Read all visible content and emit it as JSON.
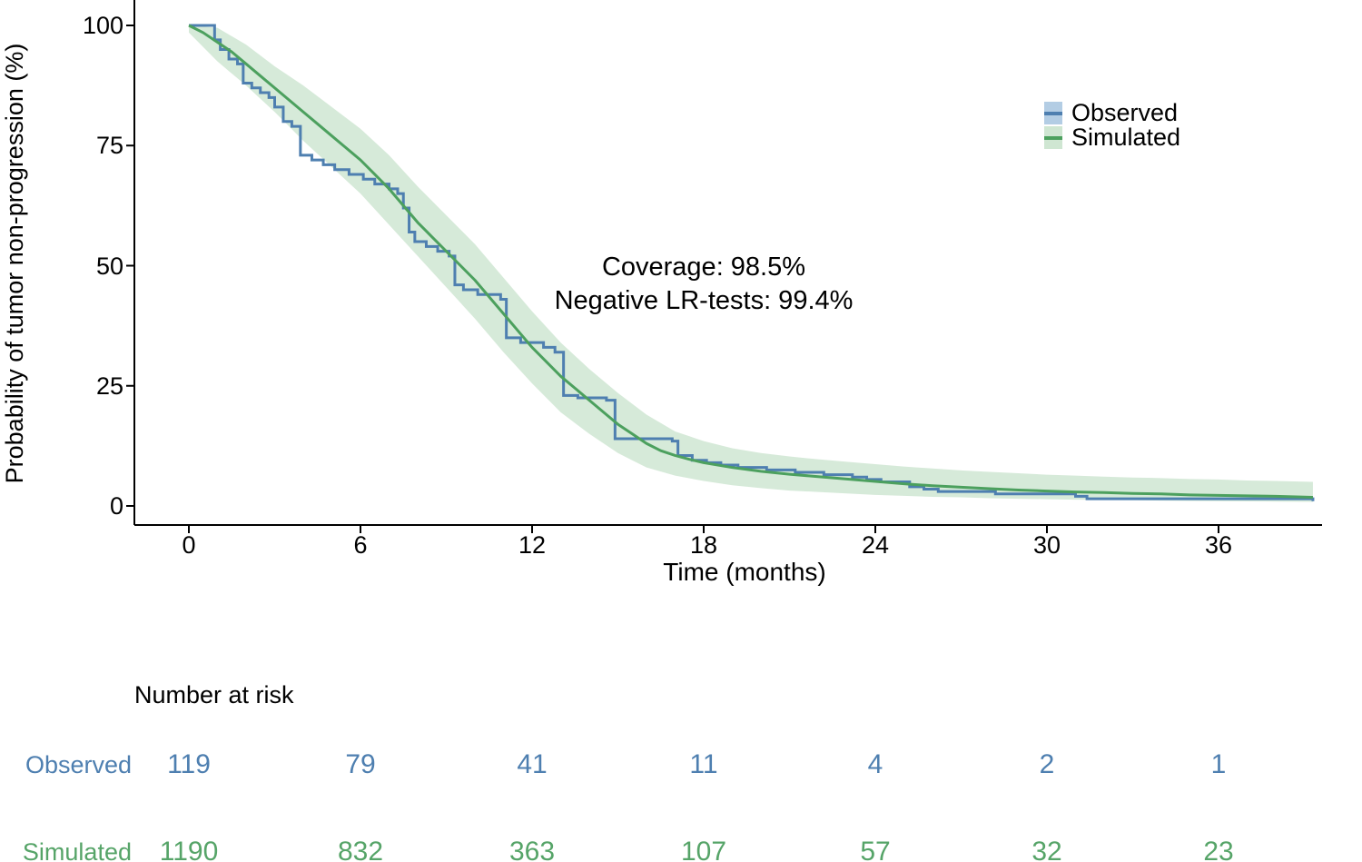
{
  "figure": {
    "ylabel": "Probability of tumor non-progression (%)",
    "xlabel": "Time (months)",
    "annotation_line1": "Coverage: 98.5%",
    "annotation_line2": "Negative LR-tests: 99.4%"
  },
  "legend": {
    "items": [
      {
        "label": "Observed",
        "line_color": "#4e7fb0",
        "fill_color": "#b3cde4"
      },
      {
        "label": "Simulated",
        "line_color": "#4ca05e",
        "fill_color": "#cfe6d2"
      }
    ]
  },
  "chart_data": {
    "type": "line",
    "title": "",
    "xlabel": "Time (months)",
    "ylabel": "Probability of tumor non-progression (%)",
    "xlim": [
      -1.9,
      39.6
    ],
    "ylim": [
      -4,
      105
    ],
    "x_ticks": [
      0,
      6,
      12,
      18,
      24,
      30,
      36
    ],
    "y_ticks": [
      0,
      25,
      50,
      75,
      100
    ],
    "grid": false,
    "legend_position": "upper right inside",
    "annotations": [
      "Coverage: 98.5%",
      "Negative LR-tests: 99.4%"
    ],
    "series": [
      {
        "name": "Observed",
        "style": "step",
        "color": "#4e7fb0",
        "points": [
          [
            0,
            100
          ],
          [
            0.7,
            100
          ],
          [
            0.9,
            97
          ],
          [
            1.1,
            95
          ],
          [
            1.4,
            93
          ],
          [
            1.7,
            92
          ],
          [
            1.9,
            88
          ],
          [
            2.2,
            87
          ],
          [
            2.5,
            86
          ],
          [
            2.8,
            85
          ],
          [
            3.0,
            83
          ],
          [
            3.3,
            80
          ],
          [
            3.6,
            79
          ],
          [
            3.9,
            73
          ],
          [
            4.3,
            72
          ],
          [
            4.7,
            71
          ],
          [
            5.1,
            70
          ],
          [
            5.6,
            69
          ],
          [
            6.1,
            68
          ],
          [
            6.5,
            67
          ],
          [
            7.0,
            66
          ],
          [
            7.3,
            65
          ],
          [
            7.5,
            62
          ],
          [
            7.7,
            57
          ],
          [
            7.9,
            55
          ],
          [
            8.3,
            54
          ],
          [
            8.7,
            53
          ],
          [
            9.1,
            52
          ],
          [
            9.3,
            46
          ],
          [
            9.6,
            45
          ],
          [
            10.1,
            44
          ],
          [
            10.9,
            43
          ],
          [
            11.1,
            35
          ],
          [
            11.6,
            34
          ],
          [
            12.4,
            33
          ],
          [
            12.8,
            32
          ],
          [
            13.1,
            23
          ],
          [
            13.6,
            22.5
          ],
          [
            14.6,
            22
          ],
          [
            14.9,
            14
          ],
          [
            16.9,
            13.5
          ],
          [
            17.1,
            10.5
          ],
          [
            17.6,
            9.5
          ],
          [
            18.1,
            9
          ],
          [
            18.6,
            8.5
          ],
          [
            19.2,
            8
          ],
          [
            20.2,
            7.5
          ],
          [
            21.2,
            7
          ],
          [
            22.2,
            6.5
          ],
          [
            23.2,
            6
          ],
          [
            23.7,
            5.5
          ],
          [
            24.2,
            5
          ],
          [
            25.2,
            4
          ],
          [
            25.7,
            3.5
          ],
          [
            26.2,
            3
          ],
          [
            28.2,
            2.5
          ],
          [
            31.0,
            2
          ],
          [
            31.4,
            1.5
          ],
          [
            39.3,
            1
          ]
        ]
      },
      {
        "name": "Simulated",
        "style": "line",
        "color": "#4ca05e",
        "points": [
          [
            0,
            100
          ],
          [
            0.5,
            98.5
          ],
          [
            1,
            96.5
          ],
          [
            1.5,
            94.5
          ],
          [
            2,
            92
          ],
          [
            2.5,
            89.5
          ],
          [
            3,
            87
          ],
          [
            3.5,
            84.5
          ],
          [
            4,
            82
          ],
          [
            4.5,
            79.5
          ],
          [
            5,
            77
          ],
          [
            5.5,
            74.5
          ],
          [
            6,
            72
          ],
          [
            6.5,
            69
          ],
          [
            7,
            66
          ],
          [
            7.5,
            62.5
          ],
          [
            8,
            59
          ],
          [
            8.5,
            56
          ],
          [
            9,
            53
          ],
          [
            9.5,
            50
          ],
          [
            10,
            47
          ],
          [
            10.5,
            43.5
          ],
          [
            11,
            40
          ],
          [
            11.5,
            36.5
          ],
          [
            12,
            33
          ],
          [
            12.5,
            30
          ],
          [
            13,
            27
          ],
          [
            13.5,
            24.5
          ],
          [
            14,
            22
          ],
          [
            14.5,
            19.5
          ],
          [
            15,
            17
          ],
          [
            15.5,
            15
          ],
          [
            16,
            13
          ],
          [
            16.5,
            11.5
          ],
          [
            17,
            10.5
          ],
          [
            17.5,
            9.7
          ],
          [
            18,
            9
          ],
          [
            19,
            8
          ],
          [
            20,
            7.2
          ],
          [
            21,
            6.6
          ],
          [
            22,
            6.1
          ],
          [
            23,
            5.6
          ],
          [
            24,
            5.1
          ],
          [
            25,
            4.6
          ],
          [
            26,
            4.2
          ],
          [
            27,
            3.9
          ],
          [
            28,
            3.6
          ],
          [
            29,
            3.3
          ],
          [
            30,
            3.1
          ],
          [
            31,
            2.9
          ],
          [
            32,
            2.8
          ],
          [
            33,
            2.6
          ],
          [
            34,
            2.5
          ],
          [
            35,
            2.3
          ],
          [
            36,
            2.2
          ],
          [
            37,
            2.1
          ],
          [
            38,
            2.0
          ],
          [
            39.3,
            1.8
          ]
        ],
        "band": {
          "fill": "#cfe6d2",
          "upper": [
            [
              0,
              100
            ],
            [
              1,
              99.5
            ],
            [
              2,
              96
            ],
            [
              3,
              91.5
            ],
            [
              4,
              87.5
            ],
            [
              5,
              83
            ],
            [
              6,
              78.5
            ],
            [
              7,
              73
            ],
            [
              8,
              66.5
            ],
            [
              9,
              60.5
            ],
            [
              10,
              54.5
            ],
            [
              11,
              47.5
            ],
            [
              12,
              40.5
            ],
            [
              13,
              34
            ],
            [
              14,
              28.5
            ],
            [
              15,
              23.5
            ],
            [
              16,
              19
            ],
            [
              17,
              15.5
            ],
            [
              18,
              13.5
            ],
            [
              19,
              12
            ],
            [
              20,
              11
            ],
            [
              21,
              10.3
            ],
            [
              22,
              9.7
            ],
            [
              23,
              9.2
            ],
            [
              24,
              8.7
            ],
            [
              25,
              8.2
            ],
            [
              26,
              7.8
            ],
            [
              27,
              7.4
            ],
            [
              28,
              7.1
            ],
            [
              29,
              6.8
            ],
            [
              30,
              6.5
            ],
            [
              31,
              6.3
            ],
            [
              32,
              6.1
            ],
            [
              33,
              5.9
            ],
            [
              34,
              5.8
            ],
            [
              35,
              5.6
            ],
            [
              36,
              5.5
            ],
            [
              37,
              5.3
            ],
            [
              38,
              5.2
            ],
            [
              39.3,
              5
            ]
          ],
          "lower": [
            [
              0,
              98.5
            ],
            [
              1,
              92.5
            ],
            [
              2,
              87.5
            ],
            [
              3,
              82
            ],
            [
              4,
              76
            ],
            [
              5,
              70.5
            ],
            [
              6,
              65
            ],
            [
              7,
              58.5
            ],
            [
              8,
              52
            ],
            [
              9,
              45.5
            ],
            [
              10,
              39
            ],
            [
              11,
              32
            ],
            [
              12,
              25.5
            ],
            [
              13,
              19.5
            ],
            [
              14,
              15
            ],
            [
              15,
              11
            ],
            [
              16,
              8
            ],
            [
              17,
              6.3
            ],
            [
              18,
              5.2
            ],
            [
              19,
              4.3
            ],
            [
              20,
              3.7
            ],
            [
              21,
              3.2
            ],
            [
              22,
              2.9
            ],
            [
              23,
              2.6
            ],
            [
              24,
              2.3
            ],
            [
              25,
              2.1
            ],
            [
              26,
              1.9
            ],
            [
              27,
              1.8
            ],
            [
              28,
              1.6
            ],
            [
              29,
              1.5
            ],
            [
              30,
              1.4
            ],
            [
              31,
              1.3
            ],
            [
              32,
              1.25
            ],
            [
              33,
              1.2
            ],
            [
              34,
              1.1
            ],
            [
              35,
              1.05
            ],
            [
              36,
              1.0
            ],
            [
              37,
              0.95
            ],
            [
              38,
              0.9
            ],
            [
              39.3,
              0.85
            ]
          ]
        }
      }
    ]
  },
  "risk_table": {
    "title": "Number at risk",
    "times": [
      0,
      6,
      12,
      18,
      24,
      30,
      36
    ],
    "rows": [
      {
        "label": "Observed",
        "color": "#4e7fb0",
        "values": [
          "119",
          "79",
          "41",
          "11",
          "4",
          "2",
          "1"
        ]
      },
      {
        "label": "Simulated",
        "color": "#56a468",
        "values": [
          "1190",
          "832",
          "363",
          "107",
          "57",
          "32",
          "23"
        ]
      }
    ]
  }
}
